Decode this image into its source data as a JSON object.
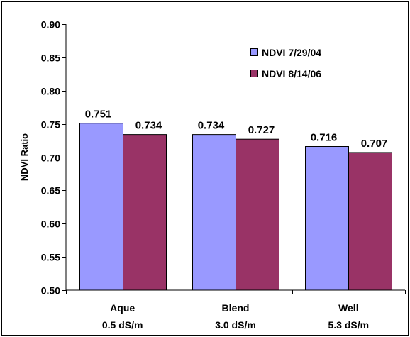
{
  "chart_data": {
    "type": "bar",
    "title": "",
    "xlabel": "",
    "ylabel": "NDVI Ratio",
    "ylim": [
      0.5,
      0.9
    ],
    "ytick_step": 0.05,
    "yticks": [
      "0.50",
      "0.55",
      "0.60",
      "0.65",
      "0.70",
      "0.75",
      "0.80",
      "0.85",
      "0.90"
    ],
    "categories": [
      {
        "line1": "Aque",
        "line2": "0.5 dS/m"
      },
      {
        "line1": "Blend",
        "line2": "3.0 dS/m"
      },
      {
        "line1": "Well",
        "line2": "5.3 dS/m"
      }
    ],
    "series": [
      {
        "name": "NDVI 7/29/04",
        "color": "#9999ff",
        "values": [
          0.751,
          0.734,
          0.716
        ],
        "labels": [
          "0.751",
          "0.734",
          "0.716"
        ]
      },
      {
        "name": "NDVI 8/14/06",
        "color": "#993366",
        "values": [
          0.734,
          0.727,
          0.707
        ],
        "labels": [
          "0.734",
          "0.727",
          "0.707"
        ]
      }
    ],
    "grid": false,
    "legend_position": "top-right"
  }
}
